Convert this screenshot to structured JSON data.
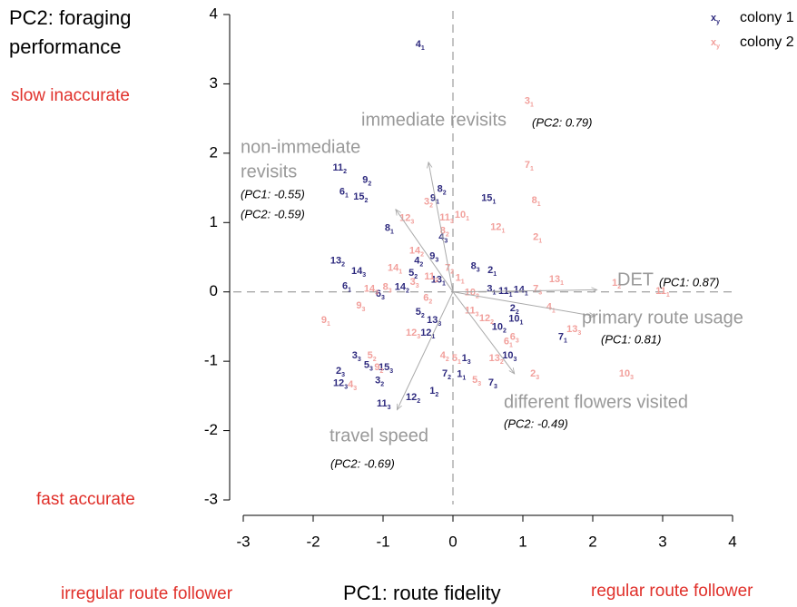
{
  "chart_data": {
    "type": "scatter",
    "y_title_lines": [
      "PC2: foraging",
      "performance"
    ],
    "y_high": "slow inaccurate",
    "y_low": "fast accurate",
    "x_title": "PC1: route fidelity",
    "x_low": "irregular route follower",
    "x_high": "regular route follower",
    "xlim": [
      -3,
      4
    ],
    "ylim": [
      -3,
      4
    ],
    "xticks": [
      -3,
      -2,
      -1,
      0,
      1,
      2,
      3,
      4
    ],
    "yticks": [
      -3,
      -2,
      -1,
      0,
      1,
      2,
      3,
      4
    ],
    "legend_symbol": {
      "main": "x",
      "sub": "y"
    },
    "series": [
      {
        "name": "colony 1",
        "color": "#2e2a7e",
        "labels": [
          "4",
          "11",
          "9",
          "6",
          "15",
          "8",
          "9",
          "15",
          "8",
          "4",
          "9",
          "4",
          "13",
          "14",
          "8",
          "2",
          "5",
          "13",
          "14",
          "6",
          "6",
          "3",
          "11",
          "14",
          "2",
          "5",
          "13",
          "10",
          "12",
          "10",
          "7",
          "10",
          "1",
          "3",
          "5",
          "15",
          "3",
          "7",
          "1",
          "7",
          "2",
          "12",
          "1",
          "12",
          "11"
        ],
        "sublabels": [
          "1",
          "2",
          "2",
          "1",
          "2",
          "2",
          "1",
          "1",
          "1",
          "3",
          "3",
          "2",
          "2",
          "3",
          "3",
          "1",
          "2",
          "1",
          "2",
          "1",
          "3",
          "1",
          "1",
          "1",
          "2",
          "2",
          "3",
          "1",
          "1",
          "2",
          "1",
          "3",
          "3",
          "3",
          "3",
          "3",
          "2",
          "2",
          "1",
          "3",
          "3",
          "3",
          "2",
          "2",
          "3"
        ],
        "x": [
          -0.47,
          -1.62,
          -1.23,
          -1.56,
          -1.32,
          -0.16,
          -0.26,
          0.51,
          -0.91,
          -0.14,
          -0.27,
          -0.49,
          -1.65,
          -1.35,
          0.32,
          0.56,
          -0.57,
          -0.21,
          -0.73,
          -1.52,
          -1.04,
          0.55,
          0.75,
          0.97,
          0.88,
          -0.47,
          -0.27,
          0.9,
          -0.36,
          0.66,
          1.57,
          0.81,
          0.19,
          -1.38,
          -1.21,
          -0.96,
          -1.05,
          -0.09,
          0.12,
          0.57,
          -1.61,
          -1.61,
          -0.27,
          -0.57,
          -0.99
        ],
        "values": [
          3.57,
          1.79,
          1.61,
          1.44,
          1.37,
          1.48,
          1.35,
          1.35,
          0.92,
          0.79,
          0.51,
          0.45,
          0.45,
          0.3,
          0.37,
          0.31,
          0.27,
          0.17,
          0.07,
          0.08,
          -0.03,
          0.04,
          0.01,
          0.03,
          -0.24,
          -0.29,
          -0.41,
          -0.39,
          -0.59,
          -0.51,
          -0.65,
          -0.92,
          -0.96,
          -0.92,
          -1.06,
          -1.09,
          -1.28,
          -1.18,
          -1.19,
          -1.31,
          -1.14,
          -1.32,
          -1.43,
          -1.52,
          -1.61
        ]
      },
      {
        "name": "colony 2",
        "color": "#f2a09c",
        "labels": [
          "3",
          "7",
          "8",
          "3",
          "12",
          "11",
          "10",
          "8",
          "12",
          "2",
          "14",
          "14",
          "1",
          "13",
          "3",
          "11",
          "14",
          "8",
          "6",
          "1",
          "7",
          "10",
          "7",
          "11",
          "9",
          "9",
          "11",
          "12",
          "4",
          "13",
          "6",
          "6",
          "12",
          "4",
          "5",
          "13",
          "5",
          "2",
          "10",
          "5",
          "9",
          "4"
        ],
        "sublabels": [
          "1",
          "1",
          "1",
          "2",
          "3",
          "3",
          "1",
          "2",
          "1",
          "1",
          "2",
          "1",
          "2",
          "1",
          "3",
          "2",
          "3",
          "3",
          "2",
          "1",
          "2",
          "2",
          "3",
          "1",
          "3",
          "1",
          "3",
          "2",
          "1",
          "3",
          "3",
          "1",
          "3",
          "2",
          "1",
          "2",
          "3",
          "3",
          "3",
          "2",
          "2",
          "3"
        ],
        "x": [
          1.09,
          1.09,
          1.19,
          -0.35,
          -0.66,
          -0.09,
          0.13,
          -0.12,
          0.64,
          1.21,
          -0.52,
          -0.83,
          2.34,
          1.48,
          -0.55,
          -0.31,
          -1.17,
          -0.94,
          -0.36,
          0.1,
          -0.05,
          0.27,
          1.21,
          3.0,
          -1.32,
          -1.82,
          0.27,
          0.48,
          1.4,
          1.73,
          0.88,
          0.79,
          -0.57,
          -0.12,
          0.05,
          0.62,
          0.34,
          1.17,
          2.48,
          -1.16,
          -1.06,
          -1.44
        ],
        "values": [
          2.75,
          1.83,
          1.32,
          1.3,
          1.06,
          1.07,
          1.11,
          0.88,
          0.93,
          0.79,
          0.59,
          0.34,
          0.13,
          0.18,
          0.14,
          0.22,
          0.04,
          0.07,
          -0.09,
          0.2,
          0.34,
          -0.01,
          0.04,
          0.01,
          -0.2,
          -0.41,
          -0.27,
          -0.38,
          -0.22,
          -0.54,
          -0.65,
          -0.72,
          -0.59,
          -0.92,
          -0.96,
          -0.96,
          -1.27,
          -1.18,
          -1.18,
          -0.92,
          -1.09,
          -1.34
        ]
      }
    ],
    "loadings": [
      {
        "label_lines": [
          "immediate revisits"
        ],
        "notes": [
          "(PC2: 0.79)"
        ],
        "x": -0.35,
        "y": 1.87
      },
      {
        "label_lines": [
          "non-immediate",
          "revisits"
        ],
        "notes": [
          "(PC1: -0.55)",
          "(PC2: -0.59)"
        ],
        "x": -0.82,
        "y": 1.19
      },
      {
        "label_lines": [
          "DET"
        ],
        "notes": [
          "(PC1: 0.87)"
        ],
        "x": 2.06,
        "y": 0.03
      },
      {
        "label_lines": [
          "primary route usage"
        ],
        "notes": [
          "(PC1: 0.81)"
        ],
        "x": 2.03,
        "y": -0.35
      },
      {
        "label_lines": [
          "different flowers visited"
        ],
        "notes": [
          "(PC2: -0.49)"
        ],
        "x": 0.88,
        "y": -1.18
      },
      {
        "label_lines": [
          "travel speed"
        ],
        "notes": [
          "(PC2: -0.69)"
        ],
        "x": -0.8,
        "y": -1.7
      }
    ]
  }
}
